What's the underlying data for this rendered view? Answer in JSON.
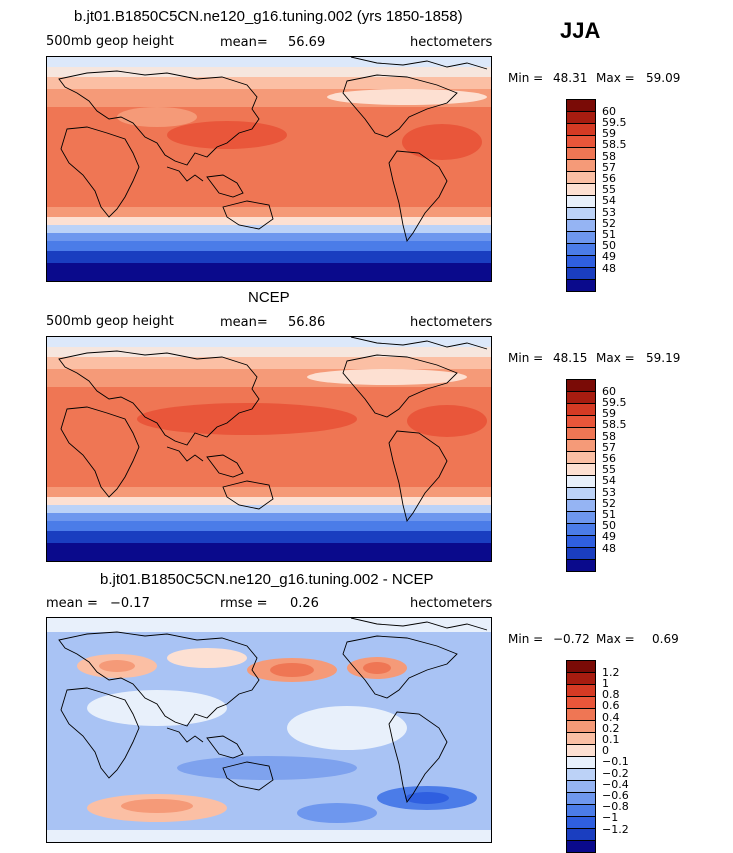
{
  "season": "JJA",
  "colors": {
    "coast": "#000000",
    "fill_top": [
      "#0a0a8c",
      "#1a3ec0",
      "#2f5fe0",
      "#4b7ce8",
      "#6e97ee",
      "#95b4f3",
      "#bcd2f7",
      "#e8f0fb",
      "#fde0d2",
      "#fbbfa4",
      "#f59a78",
      "#ef7654",
      "#e9563a",
      "#d53a24",
      "#a71c10",
      "#7a0b06"
    ],
    "diff_scale": [
      "#0a0a8c",
      "#1a3ec0",
      "#2f5fe0",
      "#4b7ce8",
      "#6e97ee",
      "#95b4f3",
      "#bcd2f7",
      "#e8f0fb",
      "#fde0d2",
      "#fbbfa4",
      "#f59a78",
      "#ef7654",
      "#e9563a",
      "#d53a24",
      "#a71c10",
      "#7a0b06"
    ]
  },
  "panels": [
    {
      "title": "b.jt01.B1850C5CN.ne120_g16.tuning.002 (yrs 1850-1858)",
      "left_label": "500mb geop height",
      "mean_label": "mean=",
      "mean_value": "56.69",
      "units": "hectometers",
      "min_label": "Min =",
      "min_value": "48.31",
      "max_label": "Max =",
      "max_value": "59.09",
      "colorbar_labels": [
        "60",
        "59.5",
        "59",
        "58.5",
        "58",
        "57",
        "56",
        "55",
        "54",
        "53",
        "52",
        "51",
        "50",
        "49",
        "48"
      ]
    },
    {
      "title": "NCEP",
      "left_label": "500mb geop height",
      "mean_label": "mean=",
      "mean_value": "56.86",
      "units": "hectometers",
      "min_label": "Min =",
      "min_value": "48.15",
      "max_label": "Max =",
      "max_value": "59.19",
      "colorbar_labels": [
        "60",
        "59.5",
        "59",
        "58.5",
        "58",
        "57",
        "56",
        "55",
        "54",
        "53",
        "52",
        "51",
        "50",
        "49",
        "48"
      ]
    },
    {
      "title": "b.jt01.B1850C5CN.ne120_g16.tuning.002 - NCEP",
      "left_label": "mean =",
      "left_value": "−0.17",
      "mean_label": "rmse =",
      "mean_value": "0.26",
      "units": "hectometers",
      "min_label": "Min =",
      "min_value": "−0.72",
      "max_label": "Max =",
      "max_value": "0.69",
      "colorbar_labels": [
        "1.2",
        "1",
        "0.8",
        "0.6",
        "0.4",
        "0.2",
        "0.1",
        "0",
        "−0.1",
        "−0.2",
        "−0.4",
        "−0.6",
        "−0.8",
        "−1",
        "−1.2"
      ]
    }
  ]
}
